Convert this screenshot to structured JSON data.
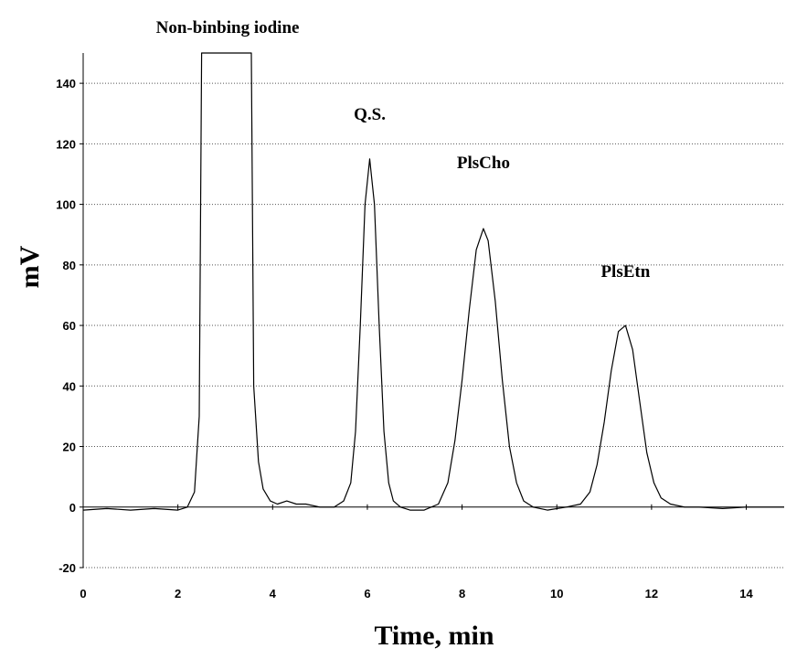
{
  "chart_data": {
    "type": "line",
    "title": "",
    "xlabel": "Time, min",
    "ylabel": "mV",
    "xlim": [
      0,
      14.8
    ],
    "ylim": [
      -20,
      150
    ],
    "x_ticks": [
      0,
      2,
      4,
      6,
      8,
      10,
      12,
      14
    ],
    "y_ticks": [
      -20,
      0,
      20,
      40,
      60,
      80,
      100,
      120,
      140
    ],
    "grid": "horizontal dotted",
    "series": [
      {
        "x": [
          0,
          0.5,
          1.0,
          1.5,
          2.0,
          2.2,
          2.35,
          2.45,
          2.5,
          3.55,
          3.6,
          3.7,
          3.8,
          3.95,
          4.1,
          4.3,
          4.5,
          4.7,
          5.0,
          5.3,
          5.5,
          5.65,
          5.75,
          5.85,
          5.95,
          6.05,
          6.15,
          6.25,
          6.35,
          6.45,
          6.55,
          6.7,
          6.9,
          7.2,
          7.5,
          7.7,
          7.85,
          8.0,
          8.15,
          8.3,
          8.45,
          8.55,
          8.7,
          8.85,
          9.0,
          9.15,
          9.3,
          9.5,
          9.8,
          10.2,
          10.5,
          10.7,
          10.85,
          11.0,
          11.15,
          11.3,
          11.45,
          11.6,
          11.75,
          11.9,
          12.05,
          12.2,
          12.4,
          12.7,
          13.0,
          13.5,
          14.0,
          14.5,
          14.8
        ],
        "values": [
          -1,
          -0.5,
          -1,
          -0.5,
          -1,
          0,
          5,
          30,
          150,
          150,
          40,
          15,
          6,
          2,
          1,
          2,
          1,
          1,
          0,
          0,
          2,
          8,
          25,
          60,
          100,
          115,
          100,
          60,
          25,
          8,
          2,
          0,
          -1,
          -1,
          1,
          8,
          22,
          42,
          65,
          85,
          92,
          88,
          68,
          42,
          20,
          8,
          2,
          0,
          -1,
          0,
          1,
          5,
          14,
          28,
          45,
          58,
          60,
          52,
          35,
          18,
          8,
          3,
          1,
          0,
          0,
          -0.5,
          0,
          0,
          0
        ]
      }
    ],
    "annotations": [
      {
        "text": "Non-binbing iodine",
        "x": 3.05,
        "y": 155
      },
      {
        "text": "Q.S.",
        "x": 6.05,
        "y": 128
      },
      {
        "text": "PlsCho",
        "x": 8.45,
        "y": 112
      },
      {
        "text": "PlsEtn",
        "x": 11.45,
        "y": 76
      }
    ]
  }
}
